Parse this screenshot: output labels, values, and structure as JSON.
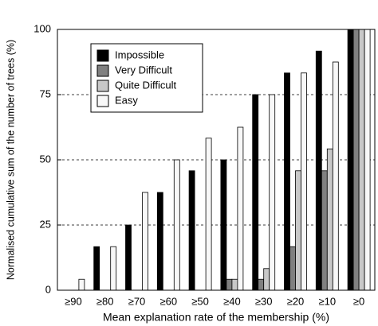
{
  "chart_data": {
    "type": "bar",
    "x_label": "Mean explanation rate of the membership (%)",
    "y_label": "Normalised cumulative sum of the number of trees (%)",
    "categories": [
      "≥90",
      "≥80",
      "≥70",
      "≥60",
      "≥50",
      "≥40",
      "≥30",
      "≥20",
      "≥10",
      "≥0"
    ],
    "series": [
      {
        "name": "Impossible",
        "color": "#000000",
        "values": [
          0,
          16.7,
          25,
          37.5,
          45.8,
          50,
          75,
          83.3,
          91.7,
          100
        ]
      },
      {
        "name": "Very Difficult",
        "color": "#808080",
        "values": [
          0,
          0,
          0,
          0,
          0,
          4.2,
          4.2,
          16.7,
          45.8,
          100
        ]
      },
      {
        "name": "Quite Difficult",
        "color": "#c8c8c8",
        "values": [
          0,
          0,
          0,
          0,
          0,
          4.2,
          8.3,
          45.8,
          54.2,
          100
        ]
      },
      {
        "name": "Easy",
        "color": "#f8f8f8",
        "values": [
          4.2,
          16.7,
          37.5,
          50,
          58.3,
          62.5,
          75,
          83.3,
          87.5,
          100
        ]
      }
    ],
    "ylim": [
      0,
      100
    ],
    "yticks": [
      0,
      25,
      50,
      75,
      100
    ],
    "grid": true,
    "legend": "upper left"
  }
}
